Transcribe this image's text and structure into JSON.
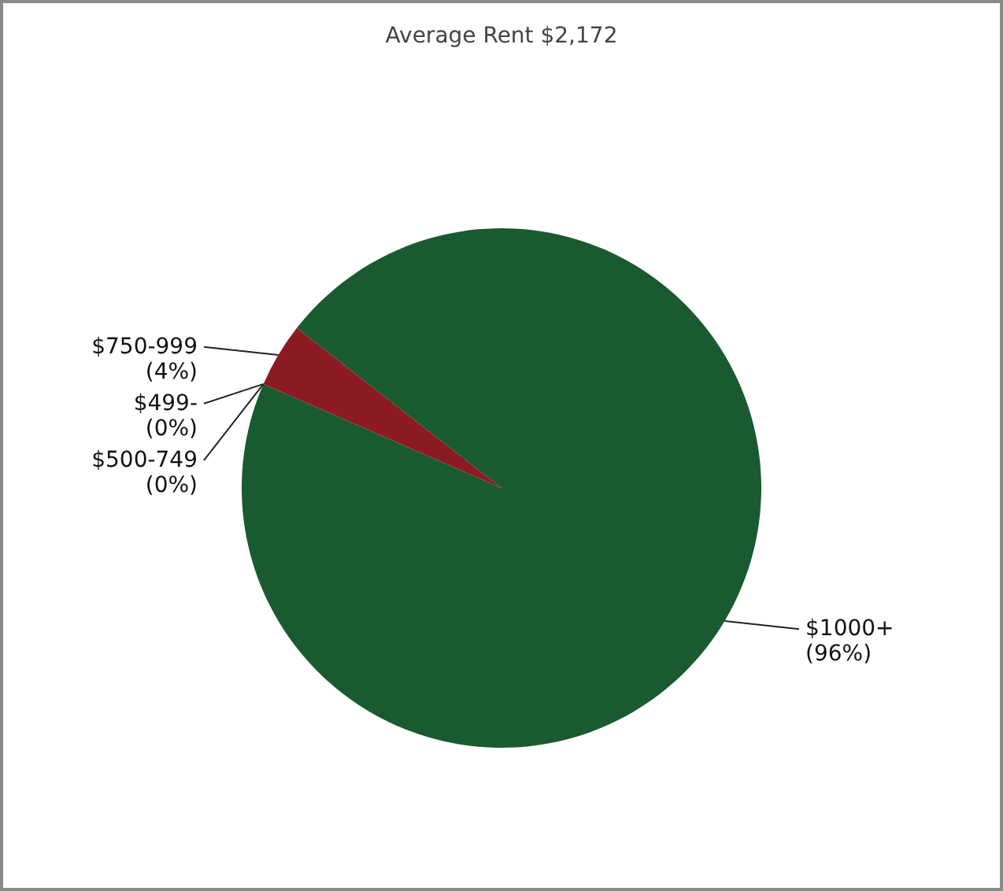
{
  "chart_data": {
    "type": "pie",
    "title": "Average Rent  $2,172",
    "categories": [
      "$1000+",
      "$499-",
      "$500-749",
      "$750-999"
    ],
    "values": [
      96,
      0,
      0,
      4
    ],
    "colors": [
      "#1a5a30",
      "#3a6ea5",
      "#d9a21b",
      "#8b1a22"
    ],
    "value_labels": [
      "(96%)",
      "(0%)",
      "(0%)",
      "(4%)"
    ]
  }
}
